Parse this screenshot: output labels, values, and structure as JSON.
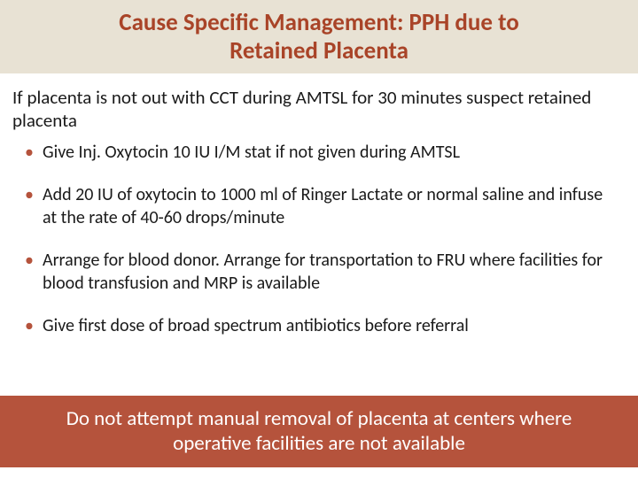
{
  "header": {
    "title_line1": "Cause Specific Management: PPH due to",
    "title_line2": "Retained Placenta",
    "bg_color": "#e8e2d4",
    "text_color": "#a94428",
    "fontsize": 27
  },
  "intro": {
    "text": "If placenta is not out with CCT during AMTSL for 30 minutes suspect retained placenta",
    "fontsize": 21,
    "color": "#1a1a1a"
  },
  "bullets": {
    "items": [
      "Give Inj. Oxytocin 10 IU I/M stat if not given during AMTSL",
      "Add 20 IU of oxytocin to 1000 ml of Ringer Lactate or normal saline and infuse at the rate of 40-60 drops/minute",
      "Arrange for  blood donor. Arrange for transportation to FRU where facilities for blood transfusion and MRP is  available",
      "Give  first dose of broad spectrum antibiotics before referral"
    ],
    "bullet_color": "#b5533c",
    "text_color": "#1a1a1a",
    "fontsize": 20
  },
  "footer": {
    "text": "Do not attempt manual removal of placenta at centers where operative facilities are not available",
    "bg_color": "#b5533c",
    "text_color": "#ffffff",
    "fontsize": 23
  }
}
